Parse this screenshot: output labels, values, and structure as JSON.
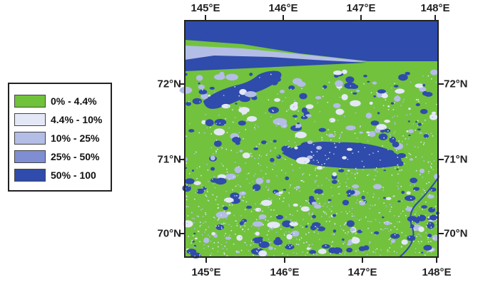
{
  "legend": {
    "items": [
      {
        "label": "0% - 4.4%",
        "color": "#6fc23a"
      },
      {
        "label": "4.4% - 10%",
        "color": "#e4e8f6"
      },
      {
        "label": "10% - 25%",
        "color": "#b4bde6"
      },
      {
        "label": "25% - 50%",
        "color": "#7f8dd3"
      },
      {
        "label": "50% - 100",
        "color": "#2f4bab"
      }
    ]
  },
  "axes": {
    "lon_ticks": [
      "145°E",
      "146°E",
      "147°E",
      "148°E"
    ],
    "lat_ticks": [
      "72°N",
      "71°N",
      "70°N"
    ]
  },
  "colors": {
    "land": "#72c23e",
    "water": "#2f4bab",
    "light_water": "#e4e8f6",
    "mid_water": "#b4bde6",
    "frame": "#222222"
  }
}
